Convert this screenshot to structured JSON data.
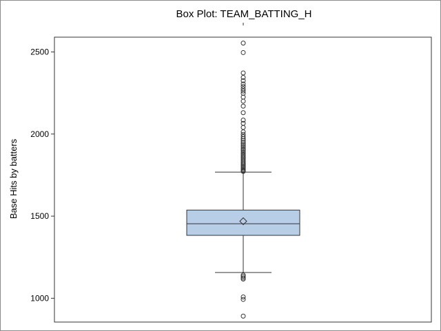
{
  "chart_data": {
    "type": "box",
    "title": "Box Plot: TEAM_BATTING_H",
    "ylabel": "Base Hits by batters",
    "xlabel": "",
    "ylim": [
      855,
      2590
    ],
    "yticks": [
      1000,
      1500,
      2000,
      2500
    ],
    "box": {
      "min_whisker": 1157,
      "q1": 1383,
      "median": 1454,
      "mean": 1469,
      "q3": 1537,
      "max_whisker": 1768
    },
    "outliers_low": [
      891,
      993,
      1008,
      1117,
      1124,
      1133,
      1141
    ],
    "outliers_high": [
      1772,
      1777,
      1783,
      1790,
      1798,
      1805,
      1812,
      1820,
      1828,
      1836,
      1845,
      1854,
      1863,
      1872,
      1881,
      1890,
      1900,
      1910,
      1920,
      1930,
      1940,
      1951,
      1962,
      1973,
      1985,
      1998,
      2013,
      2040,
      2065,
      2085,
      2130,
      2170,
      2200,
      2225,
      2248,
      2262,
      2275,
      2290,
      2305,
      2325,
      2345,
      2372,
      2496,
      2554
    ],
    "colors": {
      "box_fill": "#b8cde6",
      "box_stroke": "#333333",
      "axis": "#333333"
    }
  }
}
